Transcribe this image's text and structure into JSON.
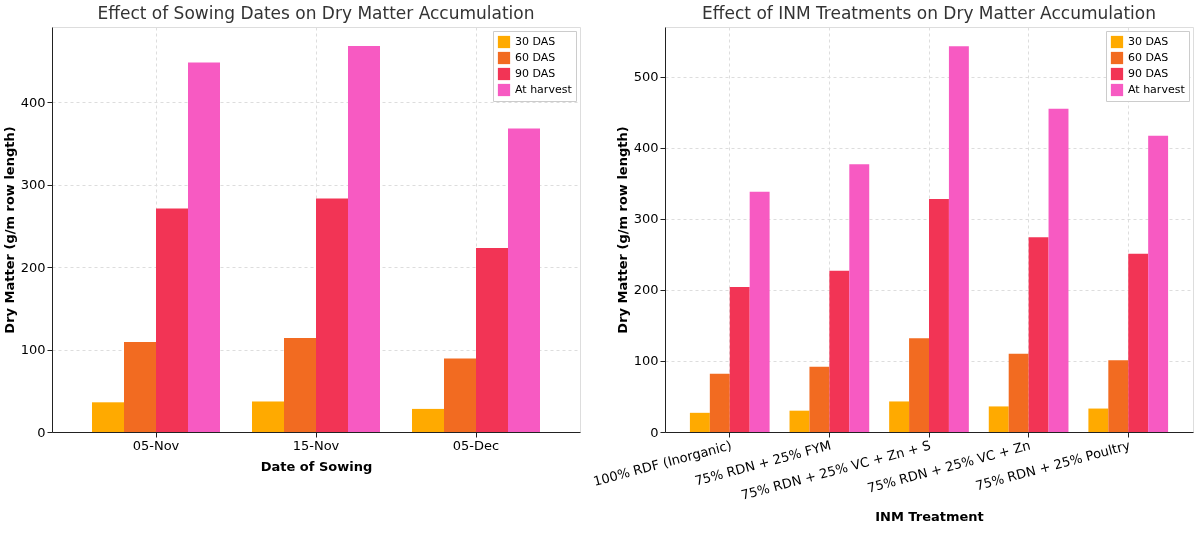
{
  "chart_data": [
    {
      "type": "bar",
      "title": "Effect of Sowing Dates on Dry Matter Accumulation",
      "xlabel": "Date of Sowing",
      "ylabel": "Dry Matter (g/m row length)",
      "categories": [
        "05-Nov",
        "15-Nov",
        "05-Dec"
      ],
      "series": [
        {
          "name": "30 DAS",
          "color": "#ffaa00",
          "values": [
            36,
            37,
            28
          ]
        },
        {
          "name": "60 DAS",
          "color": "#f26b21",
          "values": [
            109,
            114,
            89
          ]
        },
        {
          "name": "90 DAS",
          "color": "#f23455",
          "values": [
            271,
            283,
            223
          ]
        },
        {
          "name": "At harvest",
          "color": "#f75ac2",
          "values": [
            448,
            468,
            368
          ]
        }
      ],
      "ylim": [
        0,
        491
      ],
      "yticks": [
        0,
        100,
        200,
        300,
        400
      ],
      "grid": true,
      "legend": "top right"
    },
    {
      "type": "bar",
      "title": "Effect of INM Treatments on Dry Matter Accumulation",
      "xlabel": "INM Treatment",
      "ylabel": "Dry Matter (g/m row length)",
      "categories": [
        "100% RDF (Inorganic)",
        "75% RDN + 25% FYM",
        "75% RDN + 25% VC + Zn + S",
        "75% RDN + 25% VC + Zn",
        "75% RDN + 25% Poultry"
      ],
      "series": [
        {
          "name": "30 DAS",
          "color": "#ffaa00",
          "values": [
            27,
            30,
            43,
            36,
            33
          ]
        },
        {
          "name": "60 DAS",
          "color": "#f26b21",
          "values": [
            82,
            92,
            132,
            110,
            101
          ]
        },
        {
          "name": "90 DAS",
          "color": "#f23455",
          "values": [
            204,
            227,
            328,
            274,
            251
          ]
        },
        {
          "name": "At harvest",
          "color": "#f75ac2",
          "values": [
            338,
            377,
            543,
            455,
            417
          ]
        }
      ],
      "ylim": [
        0,
        570
      ],
      "yticks": [
        0,
        100,
        200,
        300,
        400,
        500
      ],
      "grid": true,
      "legend": "top right"
    }
  ]
}
